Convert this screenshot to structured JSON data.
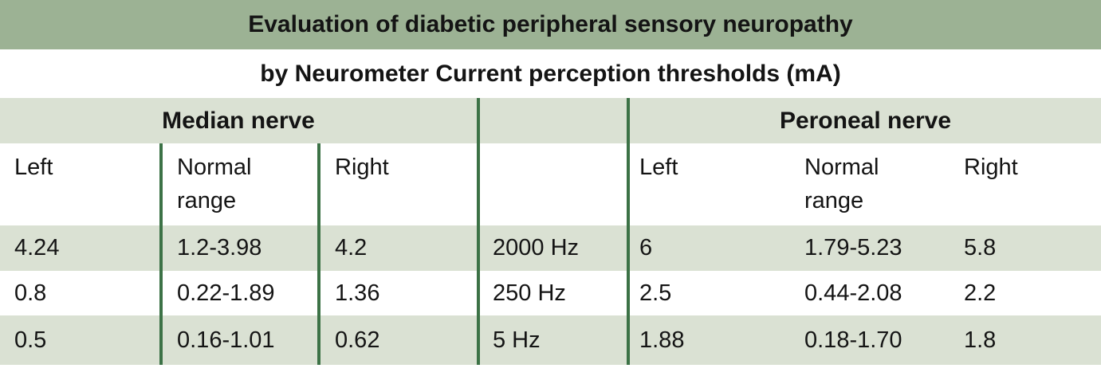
{
  "title": "Evaluation of diabetic peripheral sensory neuropathy",
  "subtitle": "by Neurometer Current perception thresholds (mA)",
  "table": {
    "unit": "mA",
    "groups": {
      "median": "Median nerve",
      "peroneal": "Peroneal nerve"
    },
    "subheaders": {
      "median_left": "Left",
      "median_normal_range": "Normal range",
      "median_right": "Right",
      "frequency": "",
      "peroneal_left": "Left",
      "peroneal_normal_range": "Normal range",
      "peroneal_right": "Right"
    },
    "rows": [
      [
        "4.24",
        "1.2-3.98",
        "4.2",
        "2000 Hz",
        "6",
        "1.79-5.23",
        "5.8"
      ],
      [
        "0.8",
        "0.22-1.89",
        "1.36",
        "250 Hz",
        "2.5",
        "0.44-2.08",
        "2.2"
      ],
      [
        "0.5",
        "0.16-1.01",
        "0.62",
        "5 Hz",
        "1.88",
        "0.18-1.70",
        "1.8"
      ]
    ]
  },
  "colors": {
    "title_band_green": "#9cb294",
    "row_green": "#dae1d3",
    "divider_green": "#3c7246",
    "text": "#141414",
    "background": "#ffffff"
  }
}
